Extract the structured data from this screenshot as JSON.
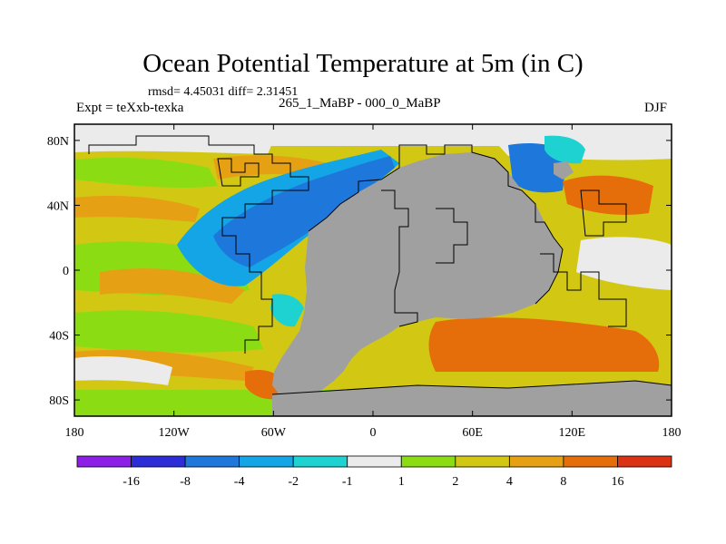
{
  "title": "Ocean Potential Temperature at 5m (in C)",
  "stats": "rmsd= 4.45031 diff= 2.31451",
  "expt": "Expt = teXxb-texka",
  "subtitle": "265_1_MaBP - 000_0_MaBP",
  "season": "DJF",
  "map": {
    "projection": "cylindrical-equidistant",
    "lon_range": [
      -180,
      180
    ],
    "lat_range": [
      -90,
      90
    ],
    "lon_ticks": [
      {
        "value": -180,
        "label": "180"
      },
      {
        "value": -120,
        "label": "120W"
      },
      {
        "value": -60,
        "label": "60W"
      },
      {
        "value": 0,
        "label": "0"
      },
      {
        "value": 60,
        "label": "60E"
      },
      {
        "value": 120,
        "label": "120E"
      },
      {
        "value": 180,
        "label": "180"
      }
    ],
    "lat_ticks": [
      {
        "value": 80,
        "label": "80N"
      },
      {
        "value": 40,
        "label": "40N"
      },
      {
        "value": 0,
        "label": "0"
      },
      {
        "value": -40,
        "label": "40S"
      },
      {
        "value": -80,
        "label": "80S"
      }
    ],
    "land_color": "#a0a0a0",
    "coastline_color": "#000000"
  },
  "colorbar": {
    "colors": [
      "#8c1ee6",
      "#2d2dd7",
      "#1e78dc",
      "#14a5e6",
      "#1ed2d2",
      "#ebebeb",
      "#8cdc14",
      "#d2c814",
      "#e6a014",
      "#e66e0a",
      "#dc3214"
    ],
    "labels": [
      "-16",
      "-8",
      "-4",
      "-2",
      "-1",
      "1",
      "2",
      "4",
      "8",
      "16"
    ]
  }
}
